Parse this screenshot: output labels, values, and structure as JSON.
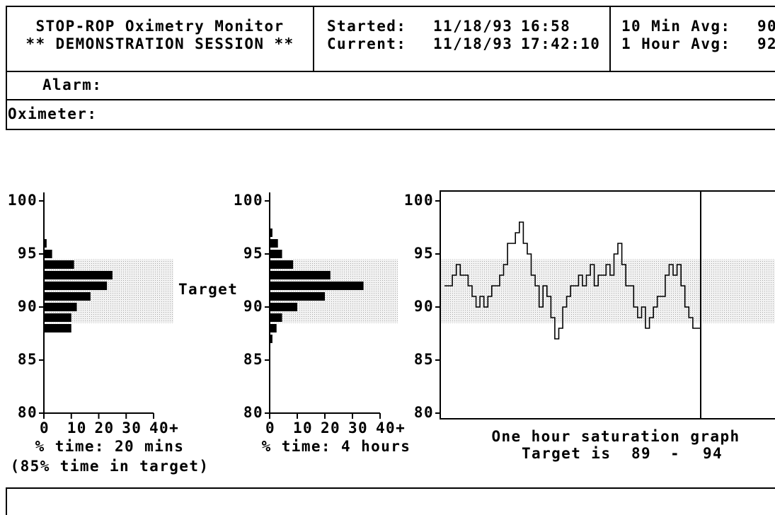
{
  "header": {
    "title": "STOP-ROP Oximetry Monitor",
    "subtitle": "** DEMONSTRATION SESSION **",
    "started_label": "Started:",
    "started_date": "11/18/93",
    "started_time": "16:58",
    "current_label": "Current:",
    "current_date": "11/18/93",
    "current_time": "17:42:10",
    "avg10_label": "10 Min Avg:",
    "avg10": 90,
    "avg60_label": "1 Hour Avg:",
    "avg60": 92
  },
  "alarm_label": "Alarm:",
  "oximeter_label": "Oximeter:",
  "target_label": "Target",
  "chart_data": [
    {
      "type": "barh",
      "y": [
        96,
        95,
        94,
        93,
        92,
        91,
        90,
        89,
        88
      ],
      "values": [
        1,
        3,
        11,
        25,
        23,
        17,
        12,
        10,
        10
      ],
      "color": "#000000",
      "xlim": [
        0,
        40
      ],
      "xticks": [
        0,
        10,
        20,
        30,
        {
          "value": 40,
          "label": "40+"
        }
      ],
      "ylim": [
        80,
        100
      ],
      "yticks": [
        80,
        85,
        90,
        95,
        100
      ],
      "xlabel": "% time: 20 mins",
      "note": "(85% time in target)"
    },
    {
      "type": "barh",
      "y": [
        97,
        96,
        95,
        94,
        93,
        92,
        91,
        90,
        89,
        88,
        87
      ],
      "values": [
        1,
        3,
        4.5,
        8.5,
        22,
        34,
        20,
        10,
        4.5,
        2.5,
        1
      ],
      "color": "#000000",
      "xlim": [
        0,
        40
      ],
      "xticks": [
        0,
        10,
        20,
        30,
        {
          "value": 40,
          "label": "40+"
        }
      ],
      "ylim": [
        80,
        100
      ],
      "yticks": [
        80,
        85,
        90,
        95,
        100
      ],
      "xlabel": "% time: 4 hours"
    },
    {
      "type": "line",
      "values": [
        92,
        92,
        93,
        94,
        93,
        93,
        92,
        91,
        90,
        91,
        90,
        91,
        92,
        92,
        93,
        94,
        96,
        96,
        97,
        98,
        96,
        95,
        93,
        92,
        90,
        92,
        91,
        89,
        87,
        88,
        90,
        91,
        92,
        92,
        93,
        92,
        93,
        94,
        92,
        93,
        93,
        94,
        93,
        95,
        96,
        94,
        92,
        92,
        90,
        89,
        90,
        88,
        89,
        90,
        91,
        91,
        93,
        94,
        93,
        94,
        92,
        90,
        89,
        88,
        88
      ],
      "color": "#000000",
      "ylim": [
        80,
        100
      ],
      "yticks": [
        80,
        85,
        90,
        95,
        100
      ],
      "title": "One hour saturation graph",
      "target_text": "Target is",
      "target": [
        89,
        94
      ],
      "target_sep": "-"
    }
  ]
}
